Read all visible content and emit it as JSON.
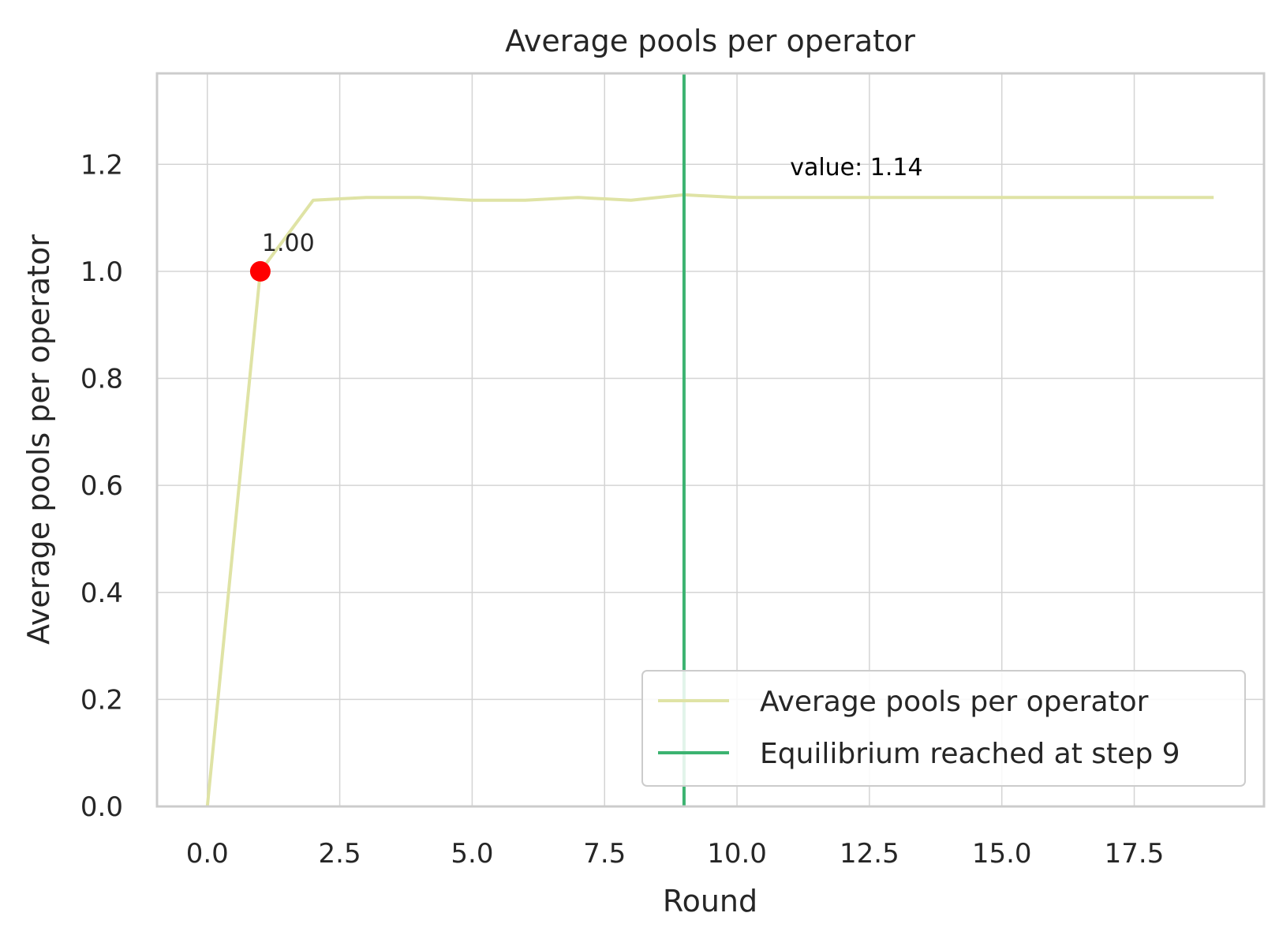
{
  "chart_data": {
    "type": "line",
    "title": "Average pools per operator",
    "xlabel": "Round",
    "ylabel": "Average pools per operator",
    "xlim": [
      -0.95,
      19.95
    ],
    "ylim": [
      0,
      1.37
    ],
    "xticks": [
      0.0,
      2.5,
      5.0,
      7.5,
      10.0,
      12.5,
      15.0,
      17.5
    ],
    "xtick_labels": [
      "0.0",
      "2.5",
      "5.0",
      "7.5",
      "10.0",
      "12.5",
      "15.0",
      "17.5"
    ],
    "yticks": [
      0.0,
      0.2,
      0.4,
      0.6,
      0.8,
      1.0,
      1.2
    ],
    "ytick_labels": [
      "0.0",
      "0.2",
      "0.4",
      "0.6",
      "0.8",
      "1.0",
      "1.2"
    ],
    "grid": true,
    "series": [
      {
        "name": "Average pools per operator",
        "color": "#dfe3a5",
        "x": [
          0,
          1,
          2,
          3,
          4,
          5,
          6,
          7,
          8,
          9,
          10,
          11,
          12,
          13,
          14,
          15,
          16,
          17,
          18,
          19
        ],
        "y": [
          0.0,
          1.0,
          1.133,
          1.138,
          1.138,
          1.133,
          1.133,
          1.138,
          1.133,
          1.143,
          1.138,
          1.138,
          1.138,
          1.138,
          1.138,
          1.138,
          1.138,
          1.138,
          1.138,
          1.138
        ]
      }
    ],
    "vline": {
      "name": "Equilibrium reached at step 9",
      "x": 9,
      "color": "#3cb371"
    },
    "marker": {
      "x": 1,
      "y": 1.0,
      "color": "#ff0000",
      "label": "1.00"
    },
    "annotation": {
      "text": "value: 1.14",
      "x": 11,
      "y": 1.18
    },
    "legend": {
      "placement": "lower right",
      "entries": [
        "Average pools per operator",
        "Equilibrium reached at step 9"
      ]
    }
  }
}
